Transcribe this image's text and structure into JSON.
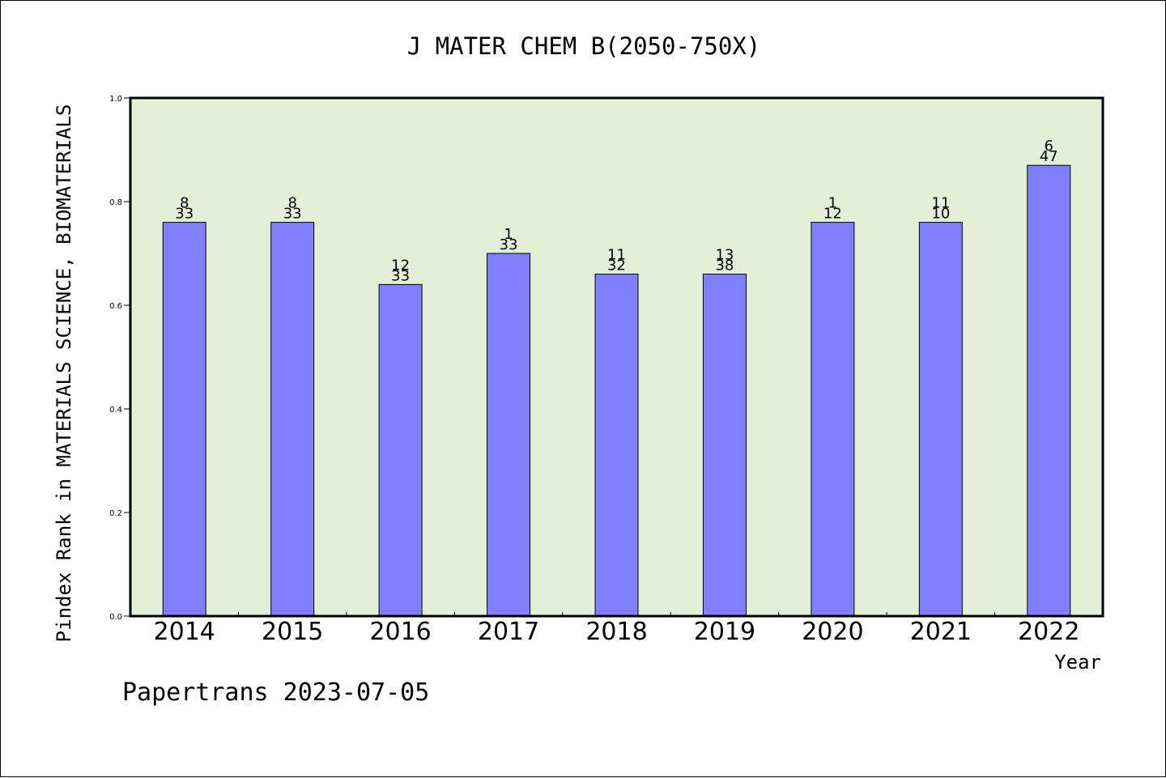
{
  "chart_data": {
    "type": "bar",
    "title": "J MATER CHEM B(2050-750X)",
    "ylabel": "Pindex Rank in MATERIALS SCIENCE, BIOMATERIALS",
    "xlabel": "Year",
    "ylim": [
      0,
      1.0
    ],
    "yticks": [
      "0.0",
      "0.2",
      "0.4",
      "0.6",
      "0.8",
      "1.0"
    ],
    "categories": [
      "2014",
      "2015",
      "2016",
      "2017",
      "2018",
      "2019",
      "2020",
      "2021",
      "2022"
    ],
    "values": [
      0.76,
      0.76,
      0.64,
      0.7,
      0.66,
      0.66,
      0.76,
      0.76,
      0.87
    ],
    "rank_labels": [
      "8",
      "8",
      "12",
      "1",
      "11",
      "13",
      "1",
      "11",
      "6"
    ],
    "total_labels": [
      "33",
      "33",
      "33",
      "33",
      "32",
      "38",
      "12",
      "10",
      "47"
    ],
    "grid": false,
    "colors": {
      "bar": "#8080ff",
      "plot_background": "#e2f0d9",
      "axis": "#000000"
    }
  },
  "footer": "Papertrans 2023-07-05"
}
